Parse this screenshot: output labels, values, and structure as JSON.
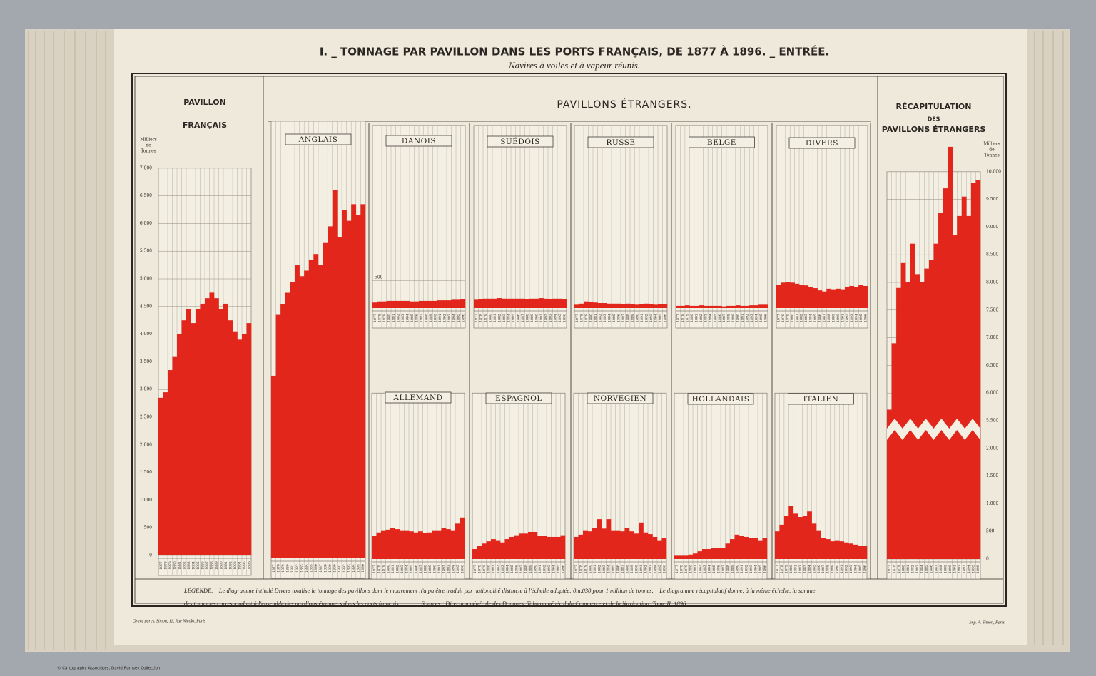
{
  "header": {
    "title": "I. _ TONNAGE PAR PAVILLON DANS LES PORTS FRANÇAIS, DE 1877 À 1896. _ ENTRÉE.",
    "subtitle": "Navires à voiles et à vapeur réunis."
  },
  "sections": {
    "foreign": "PAVILLONS ÉTRANGERS."
  },
  "legend": {
    "line_1": "LÉGENDE. _ Le diagramme intitulé Divers totalise le tonnage des pavillons dont le mouvement n'a pu être traduit par nationalité distincte à l'échelle adoptée: 0m.030 pour 1 million de tonnes. _ Le diagramme récapitulatif donne, à la même échelle, la somme",
    "line_2": "des tonnages correspondant à l'ensemble des pavillons étrangers dans les ports français. ______ Sources : Direction générale des Douanes. Tableau général du Commerce et de la Navigation. Tome II. 1896."
  },
  "credits": {
    "engraver": "Gravé par A. Simon, 11, Rue Nicolo, Paris",
    "printer": "Imp. A. Simon, Paris",
    "collection": "© Cartography Associates, David Rumsey Collection"
  },
  "chart_data": [
    {
      "type": "bar",
      "title": [
        "PAVILLON",
        "FRANÇAIS"
      ],
      "y_label": [
        "Milliers",
        "de",
        "Tonnes"
      ],
      "color": "#e2261c",
      "categories": [
        "1877",
        "1878",
        "1879",
        "1880",
        "1881",
        "1882",
        "1883",
        "1884",
        "1885",
        "1886",
        "1887",
        "1888",
        "1889",
        "1890",
        "1891",
        "1892",
        "1893",
        "1894",
        "1895",
        "1896"
      ],
      "values": [
        2850,
        2950,
        3350,
        3600,
        4000,
        4250,
        4450,
        4200,
        4450,
        4550,
        4650,
        4750,
        4650,
        4450,
        4550,
        4250,
        4050,
        3900,
        4000,
        4200
      ],
      "ylim": [
        0,
        7000
      ],
      "yticks": [
        0,
        500,
        {
          "value": 1000,
          "label": "1.000"
        },
        {
          "value": 1500,
          "label": "1.500"
        },
        {
          "value": 2000,
          "label": "2.000"
        },
        {
          "value": 2500,
          "label": "2.500"
        },
        {
          "value": 3000,
          "label": "3.000"
        },
        {
          "value": 3500,
          "label": "3.500"
        },
        {
          "value": 4000,
          "label": "4.000"
        },
        {
          "value": 4500,
          "label": "4.500"
        },
        {
          "value": 5000,
          "label": "5.000"
        },
        {
          "value": 5500,
          "label": "5.500"
        },
        {
          "value": 6000,
          "label": "6.000"
        },
        {
          "value": 6500,
          "label": "6.500"
        },
        {
          "value": 7000,
          "label": "7.000"
        }
      ]
    },
    {
      "type": "bar",
      "title": [
        "ANGLAIS"
      ],
      "color": "#e2261c",
      "categories": [
        "1877",
        "1878",
        "1879",
        "1880",
        "1881",
        "1882",
        "1883",
        "1884",
        "1885",
        "1886",
        "1887",
        "1888",
        "1889",
        "1890",
        "1891",
        "1892",
        "1893",
        "1894",
        "1895",
        "1896"
      ],
      "values": [
        3300,
        4400,
        4600,
        4800,
        5000,
        5300,
        5100,
        5200,
        5400,
        5500,
        5300,
        5700,
        6000,
        6650,
        5800,
        6300,
        6100,
        6400,
        6200,
        6400
      ],
      "ylim": [
        0,
        7900
      ]
    },
    {
      "type": "bar",
      "title": [
        "DANOIS"
      ],
      "color": "#e2261c",
      "categories": [
        "1877",
        "1878",
        "1879",
        "1880",
        "1881",
        "1882",
        "1883",
        "1884",
        "1885",
        "1886",
        "1887",
        "1888",
        "1889",
        "1890",
        "1891",
        "1892",
        "1893",
        "1894",
        "1895",
        "1896"
      ],
      "values": [
        100,
        120,
        120,
        130,
        130,
        130,
        130,
        130,
        120,
        120,
        130,
        130,
        130,
        130,
        140,
        140,
        140,
        150,
        150,
        160
      ],
      "ylim": [
        0,
        3300
      ],
      "yticks": [
        500
      ]
    },
    {
      "type": "bar",
      "title": [
        "SUÉDOIS"
      ],
      "color": "#e2261c",
      "categories": [
        "1877",
        "1878",
        "1879",
        "1880",
        "1881",
        "1882",
        "1883",
        "1884",
        "1885",
        "1886",
        "1887",
        "1888",
        "1889",
        "1890",
        "1891",
        "1892",
        "1893",
        "1894",
        "1895",
        "1896"
      ],
      "values": [
        150,
        160,
        170,
        170,
        170,
        180,
        170,
        170,
        170,
        170,
        170,
        160,
        170,
        170,
        180,
        170,
        160,
        170,
        170,
        160
      ],
      "ylim": [
        0,
        3300
      ]
    },
    {
      "type": "bar",
      "title": [
        "RUSSE"
      ],
      "color": "#e2261c",
      "categories": [
        "1877",
        "1878",
        "1879",
        "1880",
        "1881",
        "1882",
        "1883",
        "1884",
        "1885",
        "1886",
        "1887",
        "1888",
        "1889",
        "1890",
        "1891",
        "1892",
        "1893",
        "1894",
        "1895",
        "1896"
      ],
      "values": [
        60,
        80,
        120,
        110,
        100,
        90,
        90,
        80,
        80,
        80,
        70,
        80,
        70,
        60,
        70,
        80,
        70,
        60,
        70,
        70
      ],
      "ylim": [
        0,
        3300
      ]
    },
    {
      "type": "bar",
      "title": [
        "BELGE"
      ],
      "color": "#e2261c",
      "categories": [
        "1877",
        "1878",
        "1879",
        "1880",
        "1881",
        "1882",
        "1883",
        "1884",
        "1885",
        "1886",
        "1887",
        "1888",
        "1889",
        "1890",
        "1891",
        "1892",
        "1893",
        "1894",
        "1895",
        "1896"
      ],
      "values": [
        40,
        40,
        50,
        40,
        40,
        50,
        40,
        40,
        40,
        40,
        30,
        40,
        40,
        50,
        40,
        40,
        50,
        50,
        60,
        60
      ],
      "ylim": [
        0,
        3300
      ]
    },
    {
      "type": "bar",
      "title": [
        "DIVERS"
      ],
      "color": "#e2261c",
      "categories": [
        "1877",
        "1878",
        "1879",
        "1880",
        "1881",
        "1882",
        "1883",
        "1884",
        "1885",
        "1886",
        "1887",
        "1888",
        "1889",
        "1890",
        "1891",
        "1892",
        "1893",
        "1894",
        "1895",
        "1896"
      ],
      "values": [
        420,
        460,
        470,
        460,
        440,
        420,
        410,
        380,
        360,
        320,
        300,
        350,
        340,
        350,
        340,
        380,
        400,
        380,
        420,
        400
      ],
      "ylim": [
        0,
        3300
      ]
    },
    {
      "type": "bar",
      "title": [
        "ALLEMAND"
      ],
      "color": "#e2261c",
      "categories": [
        "1877",
        "1878",
        "1879",
        "1880",
        "1881",
        "1882",
        "1883",
        "1884",
        "1885",
        "1886",
        "1887",
        "1888",
        "1889",
        "1890",
        "1891",
        "1892",
        "1893",
        "1894",
        "1895",
        "1896"
      ],
      "values": [
        420,
        480,
        520,
        530,
        560,
        540,
        520,
        520,
        500,
        480,
        500,
        470,
        480,
        520,
        520,
        560,
        540,
        520,
        640,
        750
      ],
      "ylim": [
        0,
        3000
      ]
    },
    {
      "type": "bar",
      "title": [
        "ESPAGNOL"
      ],
      "color": "#e2261c",
      "categories": [
        "1877",
        "1878",
        "1879",
        "1880",
        "1881",
        "1882",
        "1883",
        "1884",
        "1885",
        "1886",
        "1887",
        "1888",
        "1889",
        "1890",
        "1891",
        "1892",
        "1893",
        "1894",
        "1895",
        "1896"
      ],
      "values": [
        180,
        240,
        280,
        320,
        360,
        340,
        300,
        360,
        400,
        430,
        460,
        460,
        490,
        490,
        420,
        420,
        400,
        400,
        400,
        430
      ],
      "ylim": [
        0,
        3000
      ]
    },
    {
      "type": "bar",
      "title": [
        "NORVÉGIEN"
      ],
      "color": "#e2261c",
      "categories": [
        "1877",
        "1878",
        "1879",
        "1880",
        "1881",
        "1882",
        "1883",
        "1884",
        "1885",
        "1886",
        "1887",
        "1888",
        "1889",
        "1890",
        "1891",
        "1892",
        "1893",
        "1894",
        "1895",
        "1896"
      ],
      "values": [
        400,
        440,
        520,
        500,
        560,
        720,
        550,
        720,
        520,
        520,
        500,
        560,
        500,
        460,
        660,
        480,
        450,
        400,
        340,
        380
      ],
      "ylim": [
        0,
        3000
      ]
    },
    {
      "type": "bar",
      "title": [
        "HOLLANDAIS"
      ],
      "color": "#e2261c",
      "categories": [
        "1877",
        "1878",
        "1879",
        "1880",
        "1881",
        "1882",
        "1883",
        "1884",
        "1885",
        "1886",
        "1887",
        "1888",
        "1889",
        "1890",
        "1891",
        "1892",
        "1893",
        "1894",
        "1895",
        "1896"
      ],
      "values": [
        60,
        60,
        60,
        80,
        100,
        140,
        180,
        180,
        200,
        200,
        200,
        280,
        360,
        440,
        420,
        400,
        380,
        380,
        340,
        380
      ],
      "ylim": [
        0,
        3000
      ]
    },
    {
      "type": "bar",
      "title": [
        "ITALIEN"
      ],
      "color": "#e2261c",
      "categories": [
        "1877",
        "1878",
        "1879",
        "1880",
        "1881",
        "1882",
        "1883",
        "1884",
        "1885",
        "1886",
        "1887",
        "1888",
        "1889",
        "1890",
        "1891",
        "1892",
        "1893",
        "1894",
        "1895",
        "1896"
      ],
      "values": [
        500,
        620,
        780,
        960,
        820,
        760,
        780,
        860,
        640,
        520,
        380,
        360,
        320,
        340,
        320,
        300,
        280,
        260,
        240,
        240
      ],
      "ylim": [
        0,
        3000
      ]
    },
    {
      "type": "bar",
      "title": [
        "RÉCAPITULATION",
        "DES",
        "PAVILLONS ÉTRANGERS"
      ],
      "y_label": [
        "Milliers",
        "de",
        "Tonnes"
      ],
      "color": "#e2261c",
      "categories": [
        "1877",
        "1878",
        "1879",
        "1880",
        "1881",
        "1882",
        "1883",
        "1884",
        "1885",
        "1886",
        "1887",
        "1888",
        "1889",
        "1890",
        "1891",
        "1892",
        "1893",
        "1894",
        "1895",
        "1896"
      ],
      "values": [
        5700,
        6900,
        7900,
        8350,
        8000,
        8700,
        8150,
        8000,
        8250,
        8400,
        8700,
        9250,
        9700,
        10450,
        8850,
        9200,
        9550,
        9200,
        9800,
        9850
      ],
      "ylim": [
        0,
        10000
      ],
      "axis_break": [
        2500,
        5500
      ],
      "yticks": [
        0,
        500,
        {
          "value": 1000,
          "label": "1.000"
        },
        {
          "value": 1500,
          "label": "1.500"
        },
        {
          "value": 2000,
          "label": "2.000"
        },
        {
          "value": 5500,
          "label": "5.500"
        },
        {
          "value": 6000,
          "label": "6.000"
        },
        {
          "value": 6500,
          "label": "6.500"
        },
        {
          "value": 7000,
          "label": "7.000"
        },
        {
          "value": 7500,
          "label": "7.500"
        },
        {
          "value": 8000,
          "label": "8.000"
        },
        {
          "value": 8500,
          "label": "8.500"
        },
        {
          "value": 9000,
          "label": "9.000"
        },
        {
          "value": 9500,
          "label": "9.500"
        },
        {
          "value": 10000,
          "label": "10.000"
        }
      ]
    }
  ]
}
